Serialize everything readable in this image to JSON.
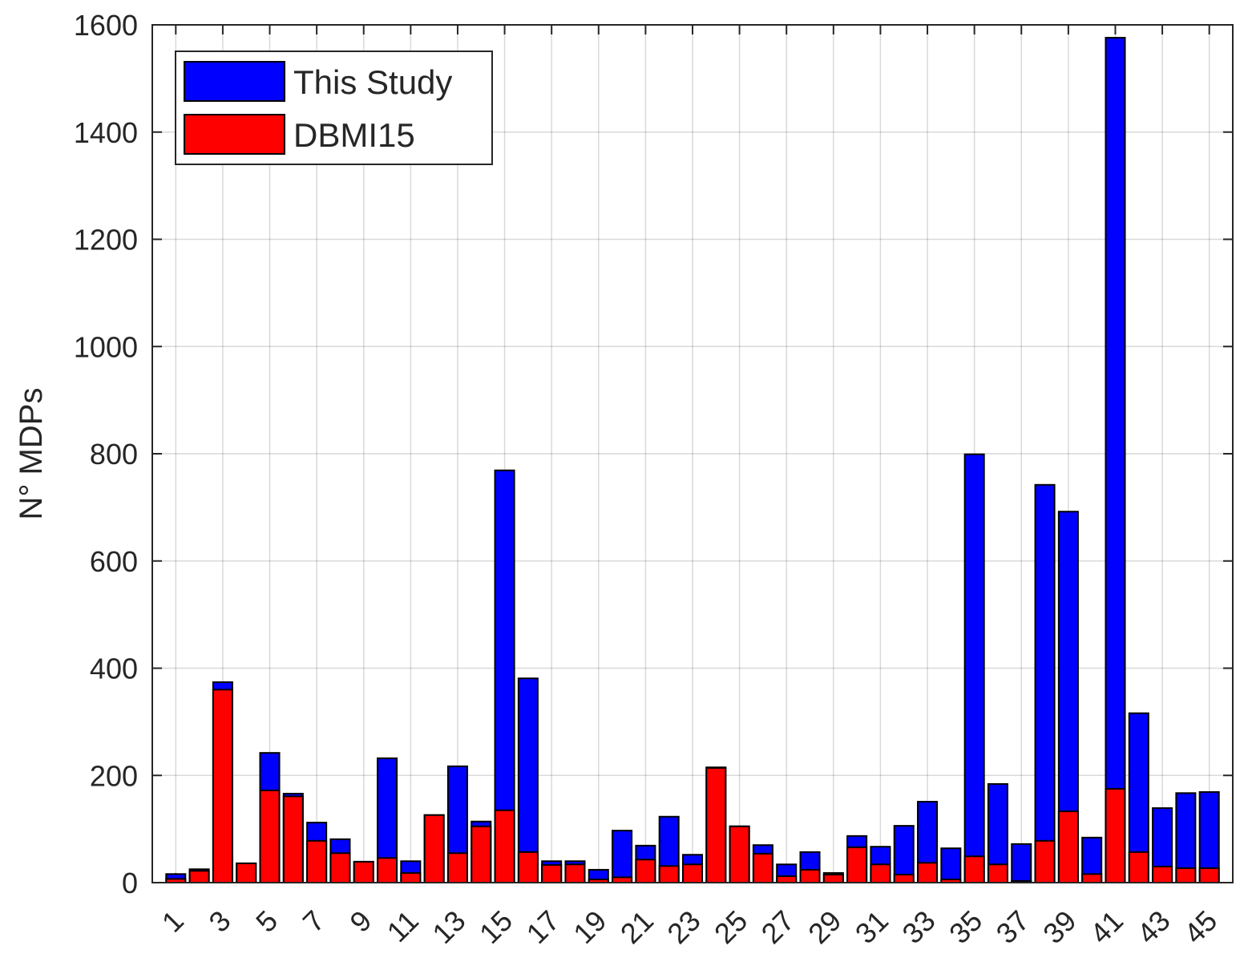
{
  "chart_data": {
    "type": "bar",
    "ylabel": "N° MDPs",
    "x": [
      1,
      2,
      3,
      4,
      5,
      6,
      7,
      8,
      9,
      10,
      11,
      12,
      13,
      14,
      15,
      16,
      17,
      18,
      19,
      20,
      21,
      22,
      23,
      24,
      25,
      26,
      27,
      28,
      29,
      30,
      31,
      32,
      33,
      34,
      35,
      36,
      37,
      38,
      39,
      40,
      41,
      42,
      43,
      44,
      45
    ],
    "series": [
      {
        "name": "This Study",
        "color": "#0000ff",
        "values": [
          16,
          25,
          374,
          36,
          242,
          166,
          112,
          81,
          39,
          232,
          40,
          126,
          217,
          114,
          769,
          381,
          40,
          40,
          24,
          97,
          69,
          123,
          52,
          215,
          105,
          70,
          34,
          57,
          18,
          87,
          67,
          106,
          151,
          64,
          799,
          184,
          72,
          742,
          692,
          84,
          1576,
          316,
          139,
          167,
          169
        ]
      },
      {
        "name": "DBMI15",
        "color": "#ff0000",
        "values": [
          7,
          22,
          360,
          36,
          172,
          161,
          78,
          55,
          39,
          46,
          18,
          126,
          55,
          105,
          135,
          57,
          33,
          34,
          6,
          10,
          43,
          31,
          34,
          214,
          105,
          54,
          12,
          24,
          15,
          66,
          34,
          15,
          37,
          6,
          49,
          34,
          3,
          78,
          133,
          16,
          175,
          57,
          30,
          27,
          27
        ]
      }
    ],
    "xlim": [
      0,
      46
    ],
    "xticks": [
      1,
      3,
      5,
      7,
      9,
      11,
      13,
      15,
      17,
      19,
      21,
      23,
      25,
      27,
      29,
      31,
      33,
      35,
      37,
      39,
      41,
      43,
      45
    ],
    "ylim": [
      0,
      1600
    ],
    "yticks": [
      0,
      200,
      400,
      600,
      800,
      1000,
      1200,
      1400,
      1600
    ],
    "grid": true,
    "legend": "upper-left"
  }
}
